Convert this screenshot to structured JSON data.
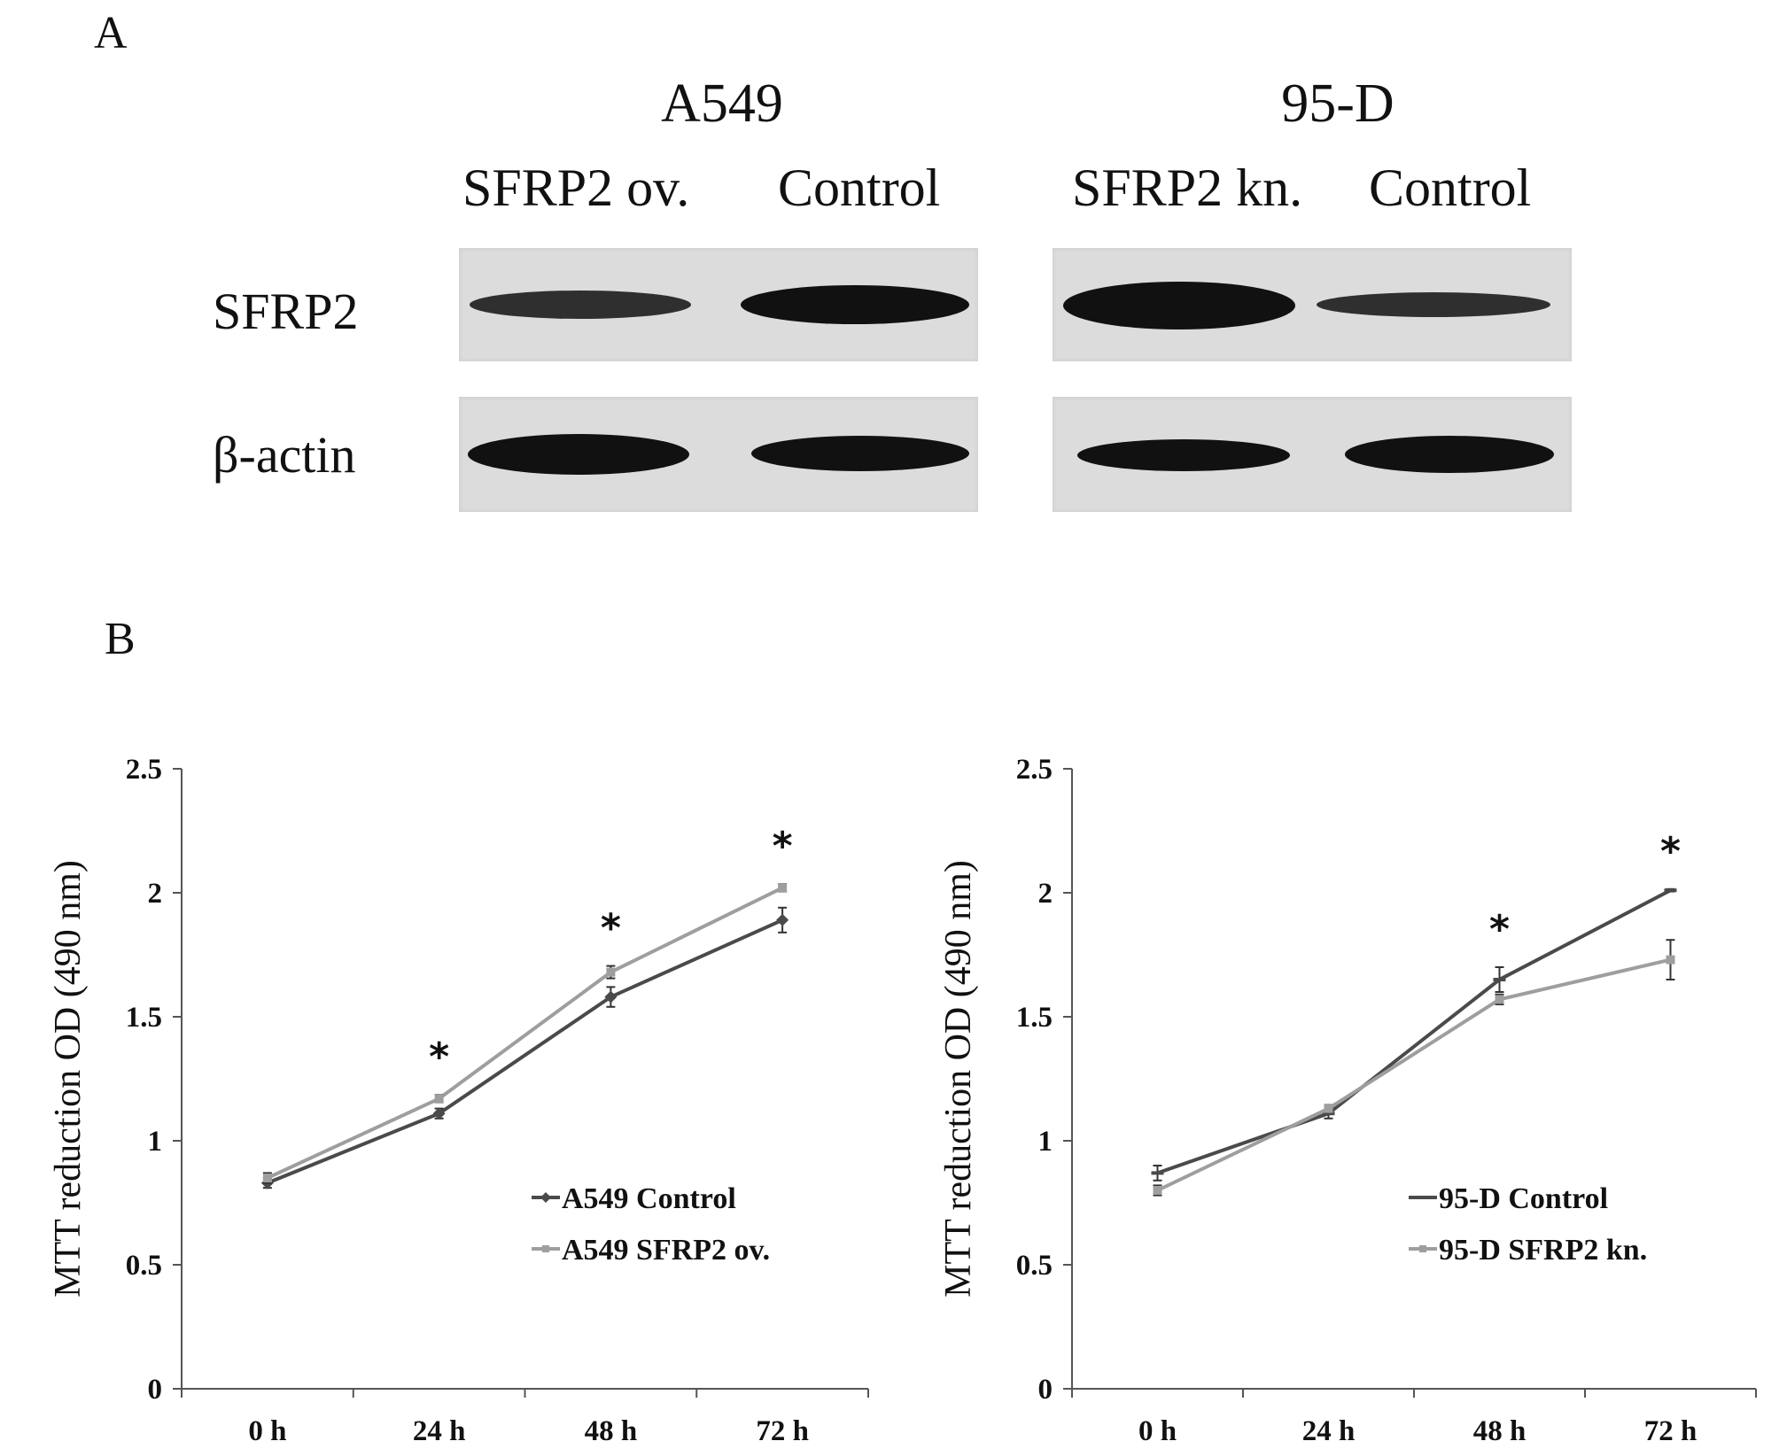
{
  "panel_a": {
    "label": "A",
    "groups": [
      {
        "title": "A549",
        "lanes": [
          "SFRP2 ov.",
          "Control"
        ]
      },
      {
        "title": "95-D",
        "lanes": [
          "SFRP2 kn.",
          "Control"
        ]
      }
    ],
    "rows": [
      "SFRP2",
      "β-actin"
    ]
  },
  "panel_b": {
    "label": "B"
  },
  "chart_data": [
    {
      "type": "line",
      "categories": [
        "0 h",
        "24 h",
        "48 h",
        "72 h"
      ],
      "ylabel": "MTT reduction OD (490 nm)",
      "ylim": [
        0,
        2.5
      ],
      "yticks": [
        "0",
        "0.5",
        "1",
        "1.5",
        "2",
        "2.5"
      ],
      "grid": false,
      "legend_position": "lower-right",
      "series": [
        {
          "name": "A549 Control",
          "values": [
            0.83,
            1.11,
            1.58,
            1.89
          ],
          "errors": [
            0.02,
            0.02,
            0.04,
            0.05
          ],
          "color": "#4a4a4a",
          "marker": "diamond"
        },
        {
          "name": "A549 SFRP2 ov.",
          "values": [
            0.85,
            1.17,
            1.68,
            2.02
          ],
          "errors": [
            0.02,
            0.015,
            0.025,
            0.015
          ],
          "color": "#9e9e9e",
          "marker": "square"
        }
      ],
      "significance": [
        "",
        "*",
        "*",
        "*"
      ]
    },
    {
      "type": "line",
      "categories": [
        "0 h",
        "24 h",
        "48 h",
        "72 h"
      ],
      "ylabel": "MTT reduction OD (490 nm)",
      "ylim": [
        0,
        2.5
      ],
      "yticks": [
        "0",
        "0.5",
        "1",
        "1.5",
        "2",
        "2.5"
      ],
      "grid": false,
      "legend_position": "lower-right",
      "series": [
        {
          "name": "95-D Control",
          "values": [
            0.87,
            1.11,
            1.65,
            2.01
          ],
          "errors": [
            0.03,
            0.02,
            0.05,
            0.005
          ],
          "color": "#4a4a4a",
          "marker": "dash"
        },
        {
          "name": "95-D SFRP2 kn.",
          "values": [
            0.8,
            1.13,
            1.57,
            1.73
          ],
          "errors": [
            0.02,
            0.015,
            0.02,
            0.08
          ],
          "color": "#9e9e9e",
          "marker": "square"
        }
      ],
      "significance": [
        "",
        "",
        "*",
        "*"
      ]
    }
  ]
}
